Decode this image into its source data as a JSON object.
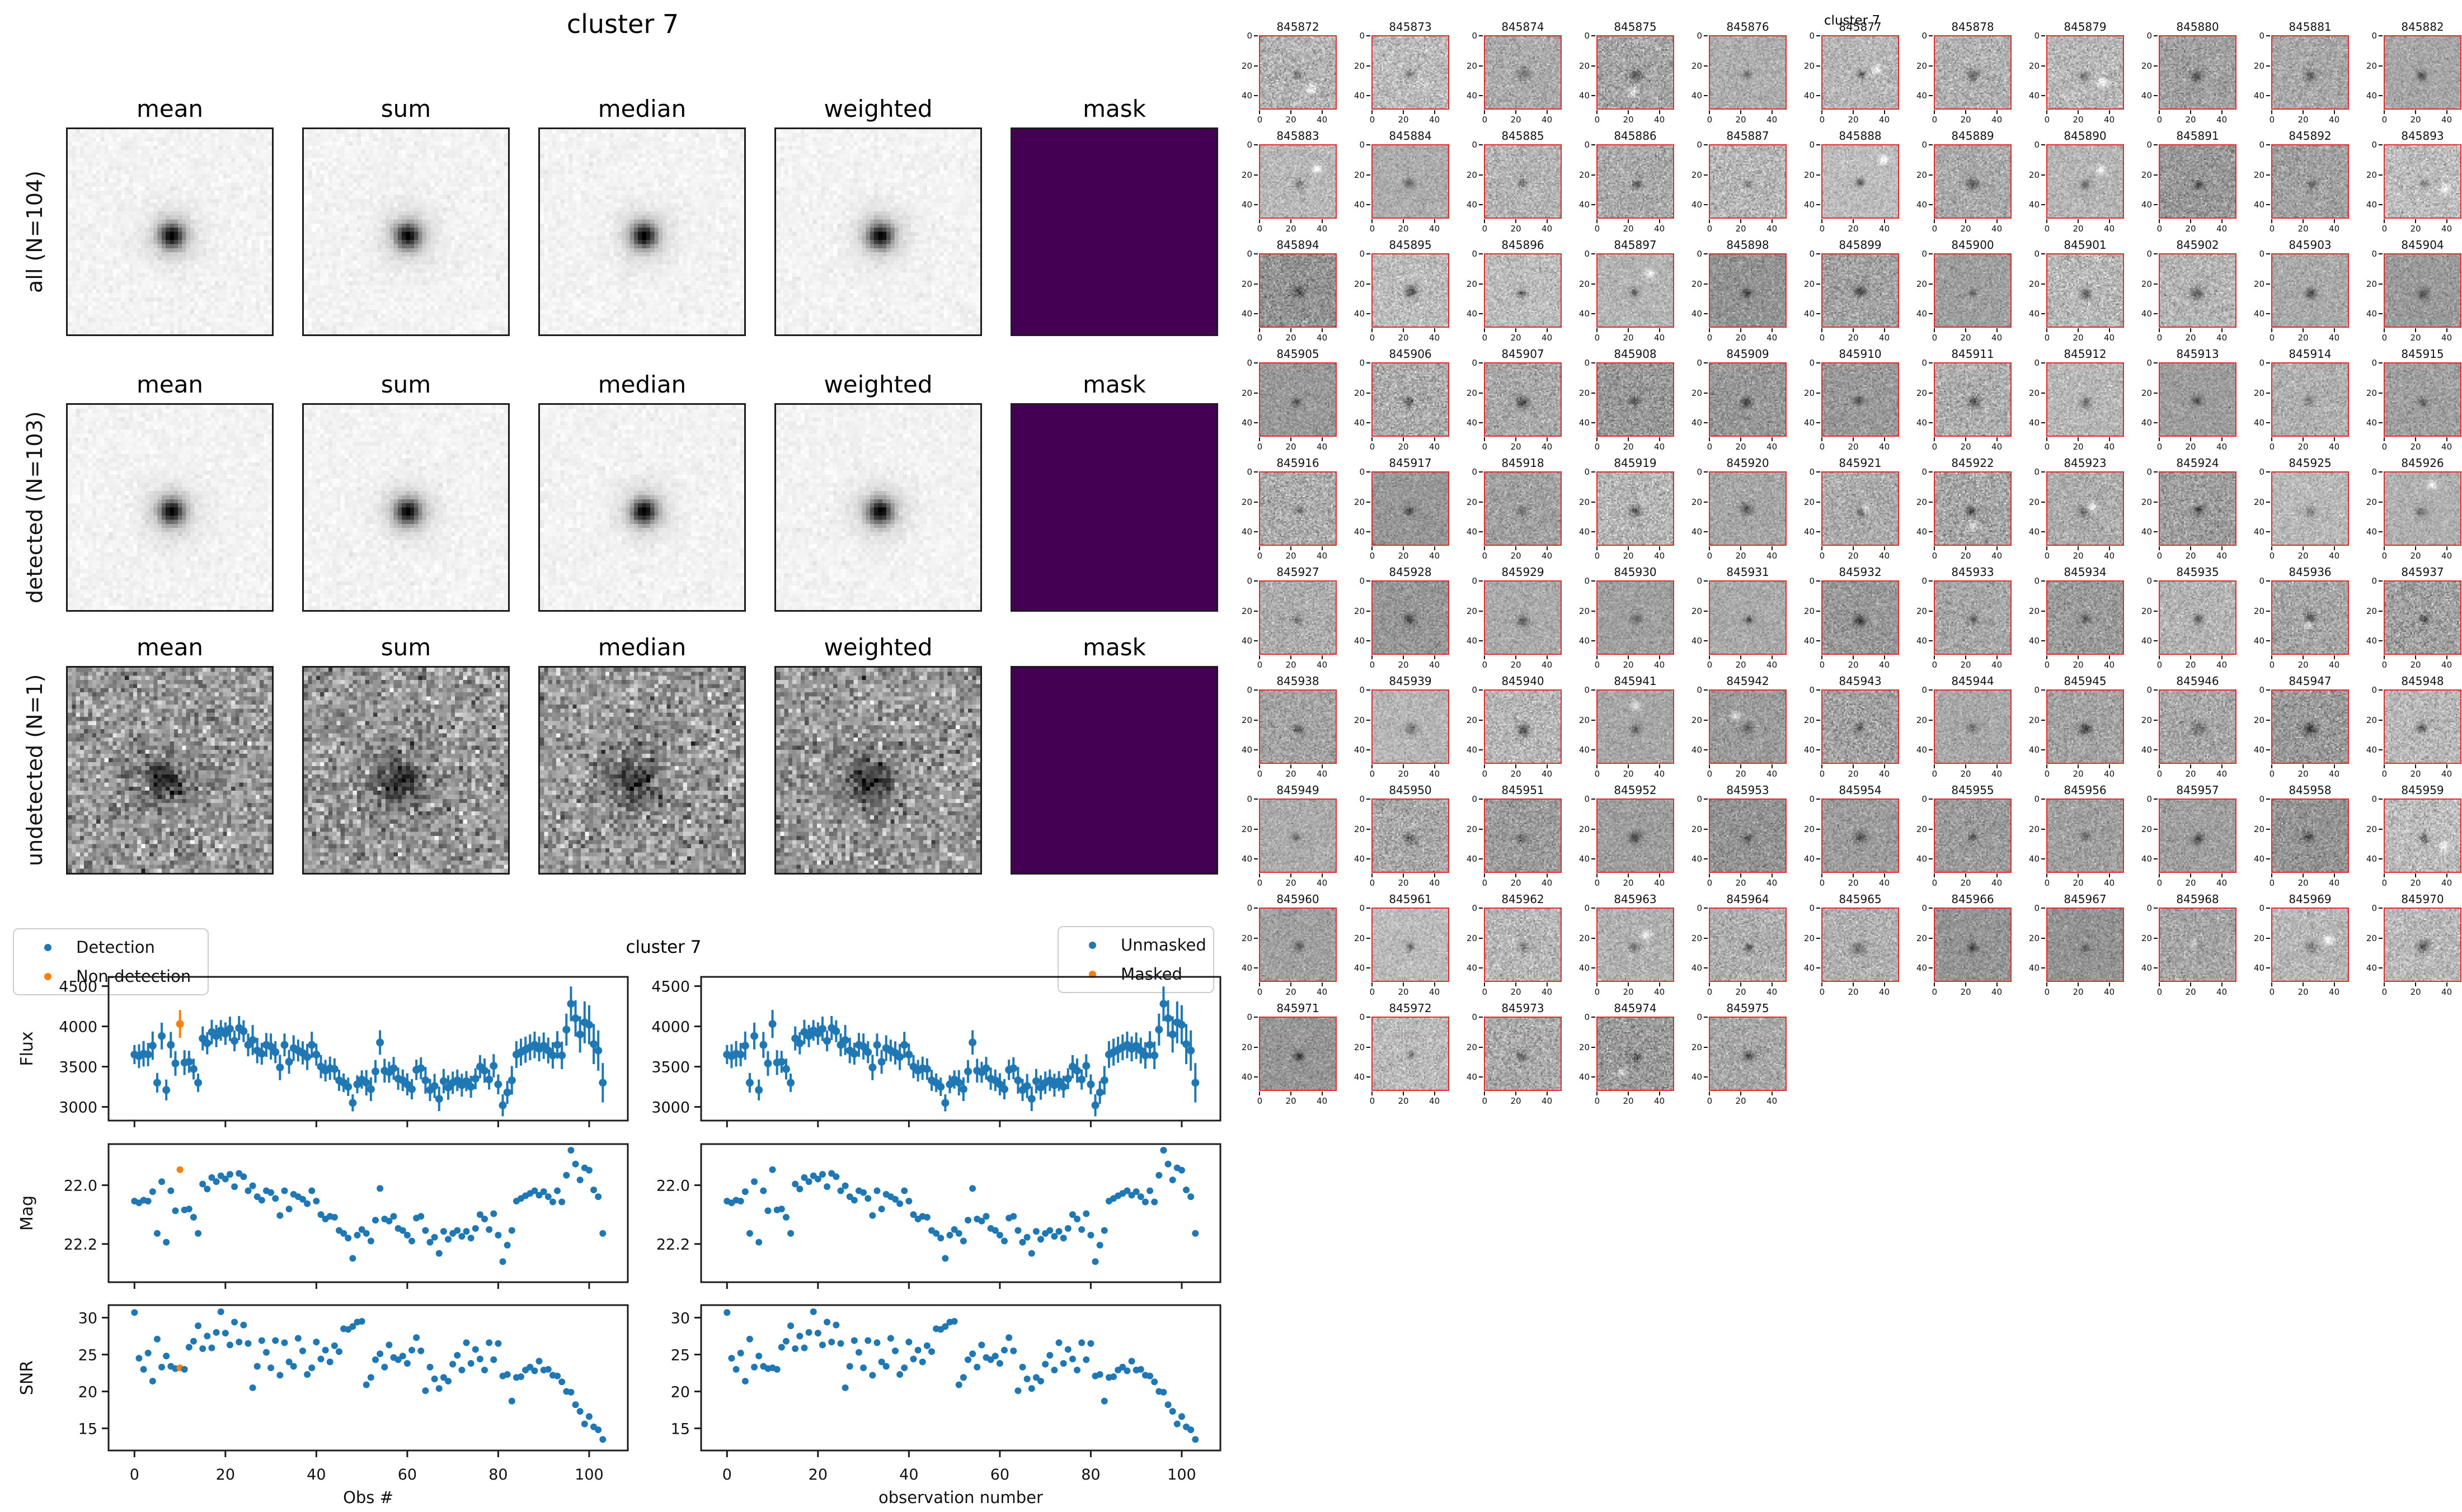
{
  "colors": {
    "detection_blue": "#1f77b4",
    "non_detection_orange": "#ff7f0e",
    "mask_purple": "#440154",
    "cutout_border_red": "#e32b2b",
    "spine_black": "#1c1c1c"
  },
  "stack_figure": {
    "title": "cluster 7",
    "column_titles": [
      "mean",
      "sum",
      "median",
      "weighted",
      "mask"
    ],
    "rows": [
      {
        "label": "all (N=104)",
        "type": "clean"
      },
      {
        "label": "detected (N=103)",
        "type": "clean"
      },
      {
        "label": "undetected (N=1)",
        "type": "noisy"
      }
    ]
  },
  "lightcurve_figure": {
    "title": "cluster 7",
    "left_legend": {
      "items": [
        {
          "label": "Detection",
          "color": "#1f77b4"
        },
        {
          "label": "Non-detection",
          "color": "#ff7f0e"
        }
      ]
    },
    "right_legend": {
      "items": [
        {
          "label": "Unmasked",
          "color": "#1f77b4"
        },
        {
          "label": "Masked",
          "color": "#ff7f0e"
        }
      ]
    },
    "ylabels": [
      "Flux",
      "Mag",
      "SNR"
    ],
    "xlabel_left": "Obs #",
    "xlabel_right": "observation number"
  },
  "chart_data": {
    "type": "scatter",
    "title": "cluster 7",
    "xticks": [
      0,
      20,
      40,
      60,
      80,
      100
    ],
    "xlim": [
      -5.7,
      108.5
    ],
    "non_detection_index": 10,
    "columns": [
      {
        "xlabel": "Obs #",
        "legend": [
          "Detection",
          "Non-detection"
        ]
      },
      {
        "xlabel": "observation number",
        "legend": [
          "Unmasked",
          "Masked"
        ]
      }
    ],
    "x": [
      0,
      1,
      2,
      3,
      4,
      5,
      6,
      7,
      8,
      9,
      10,
      11,
      12,
      13,
      14,
      15,
      16,
      17,
      18,
      19,
      20,
      21,
      22,
      23,
      24,
      25,
      26,
      27,
      28,
      29,
      30,
      31,
      32,
      33,
      34,
      35,
      36,
      37,
      38,
      39,
      40,
      41,
      42,
      43,
      44,
      45,
      46,
      47,
      48,
      49,
      50,
      51,
      52,
      53,
      54,
      55,
      56,
      57,
      58,
      59,
      60,
      61,
      62,
      63,
      64,
      65,
      66,
      67,
      68,
      69,
      70,
      71,
      72,
      73,
      74,
      75,
      76,
      77,
      78,
      79,
      80,
      81,
      82,
      83,
      84,
      85,
      86,
      87,
      88,
      89,
      90,
      91,
      92,
      93,
      94,
      95,
      96,
      97,
      98,
      99,
      100,
      101,
      102,
      103
    ],
    "panels": [
      {
        "ylabel": "Flux",
        "yticks": [
          3000,
          3500,
          4000,
          4500
        ],
        "ylim": [
          2830,
          4615
        ],
        "errorbars": true,
        "error_rule": "flux/snr",
        "values": [
          3650,
          3630,
          3660,
          3650,
          3760,
          3300,
          3880,
          3210,
          3770,
          3540,
          4030,
          3550,
          3560,
          3470,
          3300,
          3850,
          3790,
          3930,
          3880,
          3950,
          3910,
          3970,
          3820,
          3980,
          3940,
          3770,
          3830,
          3700,
          3660,
          3770,
          3750,
          3680,
          3490,
          3770,
          3560,
          3730,
          3700,
          3670,
          3620,
          3770,
          3650,
          3500,
          3450,
          3480,
          3470,
          3330,
          3300,
          3250,
          3050,
          3280,
          3340,
          3300,
          3220,
          3440,
          3800,
          3450,
          3430,
          3480,
          3350,
          3330,
          3280,
          3220,
          3460,
          3480,
          3330,
          3210,
          3260,
          3100,
          3320,
          3240,
          3300,
          3330,
          3270,
          3320,
          3250,
          3350,
          3500,
          3450,
          3340,
          3510,
          3280,
          3020,
          3180,
          3330,
          3650,
          3680,
          3710,
          3740,
          3770,
          3720,
          3760,
          3700,
          3640,
          3770,
          3640,
          3960,
          4280,
          4100,
          3900,
          4050,
          4020,
          3780,
          3700,
          3300
        ]
      },
      {
        "ylabel": "Mag",
        "yticks": [
          22.0,
          22.2
        ],
        "ylim": [
          21.86,
          22.33
        ],
        "inverted": true,
        "values": [
          22.054,
          22.06,
          22.051,
          22.054,
          22.022,
          22.164,
          21.988,
          22.194,
          22.019,
          22.087,
          21.947,
          22.084,
          22.081,
          22.109,
          22.164,
          21.996,
          22.013,
          21.974,
          21.988,
          21.968,
          21.979,
          21.963,
          22.005,
          21.96,
          21.971,
          22.019,
          22.002,
          22.039,
          22.051,
          22.019,
          22.025,
          22.045,
          22.103,
          22.019,
          22.081,
          22.031,
          22.039,
          22.048,
          22.063,
          22.019,
          22.054,
          22.1,
          22.115,
          22.106,
          22.109,
          22.154,
          22.164,
          22.18,
          22.249,
          22.17,
          22.151,
          22.164,
          22.19,
          22.119,
          22.011,
          22.115,
          22.122,
          22.106,
          22.147,
          22.154,
          22.17,
          22.19,
          22.112,
          22.106,
          22.154,
          22.194,
          22.177,
          22.232,
          22.157,
          22.184,
          22.164,
          22.154,
          22.174,
          22.157,
          22.18,
          22.147,
          22.1,
          22.115,
          22.151,
          22.097,
          22.17,
          22.26,
          22.204,
          22.154,
          22.054,
          22.045,
          22.036,
          22.028,
          22.019,
          22.034,
          22.022,
          22.039,
          22.057,
          22.019,
          22.057,
          21.966,
          21.881,
          21.928,
          21.982,
          21.941,
          21.949,
          22.016,
          22.039,
          22.164
        ]
      },
      {
        "ylabel": "SNR",
        "yticks": [
          15,
          20,
          25,
          30
        ],
        "ylim": [
          12.0,
          31.7
        ],
        "values": [
          30.7,
          24.5,
          23.0,
          25.2,
          21.4,
          27.1,
          23.3,
          24.8,
          23.4,
          23.1,
          23.2,
          23.0,
          26.0,
          26.8,
          28.9,
          25.8,
          27.5,
          25.9,
          28.0,
          30.8,
          27.9,
          26.3,
          29.4,
          26.7,
          29.0,
          26.5,
          20.5,
          23.4,
          26.9,
          25.3,
          23.2,
          26.9,
          22.2,
          26.6,
          24.0,
          23.4,
          27.2,
          25.5,
          22.3,
          23.2,
          26.7,
          24.4,
          25.6,
          24.0,
          26.2,
          25.4,
          28.5,
          28.4,
          28.8,
          29.4,
          29.5,
          20.9,
          21.9,
          24.3,
          25.1,
          23.3,
          26.3,
          24.6,
          24.3,
          24.8,
          23.8,
          25.6,
          27.3,
          25.5,
          20.1,
          23.3,
          21.7,
          20.4,
          21.9,
          21.4,
          23.7,
          24.9,
          22.9,
          26.6,
          23.8,
          25.7,
          24.4,
          22.9,
          26.6,
          24.3,
          26.5,
          22.1,
          22.3,
          18.7,
          21.9,
          22.0,
          22.9,
          23.3,
          22.8,
          24.1,
          22.9,
          23.0,
          22.2,
          22.1,
          21.3,
          20.0,
          19.9,
          18.2,
          17.3,
          15.6,
          16.6,
          15.2,
          14.8,
          13.5
        ]
      }
    ]
  },
  "cutouts_figure": {
    "suptitle": "cluster 7",
    "xticks": [
      0,
      20,
      40
    ],
    "yticks": [
      0,
      20,
      40
    ],
    "ids": [
      "845872",
      "845873",
      "845874",
      "845875",
      "845876",
      "845877",
      "845878",
      "845879",
      "845880",
      "845881",
      "845882",
      "845883",
      "845884",
      "845885",
      "845886",
      "845887",
      "845888",
      "845889",
      "845890",
      "845891",
      "845892",
      "845893",
      "845894",
      "845895",
      "845896",
      "845897",
      "845898",
      "845899",
      "845900",
      "845901",
      "845902",
      "845903",
      "845904",
      "845905",
      "845906",
      "845907",
      "845908",
      "845909",
      "845910",
      "845911",
      "845912",
      "845913",
      "845914",
      "845915",
      "845916",
      "845917",
      "845918",
      "845919",
      "845920",
      "845921",
      "845922",
      "845923",
      "845924",
      "845925",
      "845926",
      "845927",
      "845928",
      "845929",
      "845930",
      "845931",
      "845932",
      "845933",
      "845934",
      "845935",
      "845936",
      "845937",
      "845938",
      "845939",
      "845940",
      "845941",
      "845942",
      "845943",
      "845944",
      "845945",
      "845946",
      "845947",
      "845948",
      "845949",
      "845950",
      "845951",
      "845952",
      "845953",
      "845954",
      "845955",
      "845956",
      "845957",
      "845958",
      "845959",
      "845960",
      "845961",
      "845962",
      "845963",
      "845964",
      "845965",
      "845966",
      "845967",
      "845968",
      "845969",
      "845970",
      "845971",
      "845972",
      "845973",
      "845974",
      "845975"
    ]
  }
}
